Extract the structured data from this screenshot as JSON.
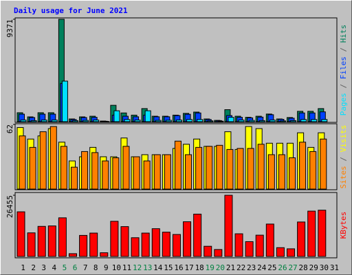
{
  "chart_data": [
    {
      "type": "bar",
      "title": "Daily usage for June 2021",
      "ylim": [
        0,
        9371
      ],
      "yticks": [
        9371
      ],
      "legend_separator": " / ",
      "series": [
        {
          "name": "Hits",
          "color": "#00805c",
          "values": [
            820,
            440,
            820,
            820,
            9371,
            250,
            440,
            500,
            60,
            1500,
            800,
            600,
            1200,
            500,
            500,
            600,
            760,
            880,
            250,
            120,
            1100,
            500,
            400,
            500,
            700,
            250,
            380,
            950,
            950,
            1200,
            null
          ]
        },
        {
          "name": "Files",
          "color": "#0040ff",
          "values": [
            690,
            380,
            690,
            690,
            3500,
            200,
            380,
            400,
            40,
            600,
            500,
            450,
            600,
            450,
            450,
            560,
            680,
            800,
            200,
            100,
            560,
            400,
            350,
            420,
            640,
            220,
            320,
            800,
            800,
            900,
            null
          ]
        },
        {
          "name": "Pages",
          "color": "#00e0ff",
          "values": [
            150,
            100,
            150,
            150,
            3711,
            100,
            120,
            150,
            20,
            1000,
            200,
            150,
            1000,
            120,
            130,
            150,
            200,
            200,
            80,
            50,
            400,
            150,
            120,
            100,
            150,
            80,
            100,
            200,
            200,
            200,
            null
          ]
        }
      ]
    },
    {
      "type": "bar",
      "ylim": [
        0,
        62
      ],
      "yticks": [
        62
      ],
      "legend_separator": " / ",
      "series": [
        {
          "name": "Visits",
          "color": "#ffff00",
          "values": [
            59,
            48,
            51,
            58,
            45,
            27,
            31,
            40,
            31,
            31,
            49,
            31,
            33,
            33,
            33,
            39,
            43,
            48,
            41,
            41,
            55,
            38,
            60,
            58,
            44,
            44,
            44,
            54,
            40,
            54,
            null
          ]
        },
        {
          "name": "Sites",
          "color": "#ff8000",
          "values": [
            51,
            40,
            55,
            60,
            41,
            21,
            36,
            35,
            27,
            30,
            41,
            31,
            27,
            33,
            33,
            46,
            33,
            40,
            41,
            42,
            38,
            39,
            39,
            43,
            33,
            33,
            30,
            45,
            36,
            48,
            null
          ]
        }
      ]
    },
    {
      "type": "bar",
      "ylim": [
        0,
        26455
      ],
      "yticks": [
        26455
      ],
      "categories": [
        "1",
        "2",
        "3",
        "4",
        "5",
        "6",
        "7",
        "8",
        "9",
        "10",
        "11",
        "12",
        "13",
        "14",
        "15",
        "16",
        "17",
        "18",
        "19",
        "20",
        "21",
        "22",
        "23",
        "24",
        "25",
        "26",
        "27",
        "28",
        "29",
        "30",
        "31"
      ],
      "label_colors": [
        "#000",
        "#000",
        "#000",
        "#000",
        "#008040",
        "#008040",
        "#000",
        "#000",
        "#000",
        "#000",
        "#000",
        "#008040",
        "#008040",
        "#000",
        "#000",
        "#000",
        "#000",
        "#000",
        "#008040",
        "#008040",
        "#000",
        "#000",
        "#000",
        "#000",
        "#000",
        "#008040",
        "#008040",
        "#000",
        "#000",
        "#000",
        "#000"
      ],
      "series": [
        {
          "name": "KBytes",
          "color": "#ff0000",
          "values": [
            19300,
            10200,
            13000,
            13200,
            16700,
            1200,
            9100,
            10100,
            1600,
            15200,
            12900,
            8100,
            10100,
            12000,
            10500,
            9500,
            15000,
            18300,
            4400,
            3000,
            26455,
            9800,
            6400,
            9200,
            14000,
            3800,
            3300,
            14900,
            19600,
            20000,
            null
          ]
        }
      ]
    }
  ]
}
